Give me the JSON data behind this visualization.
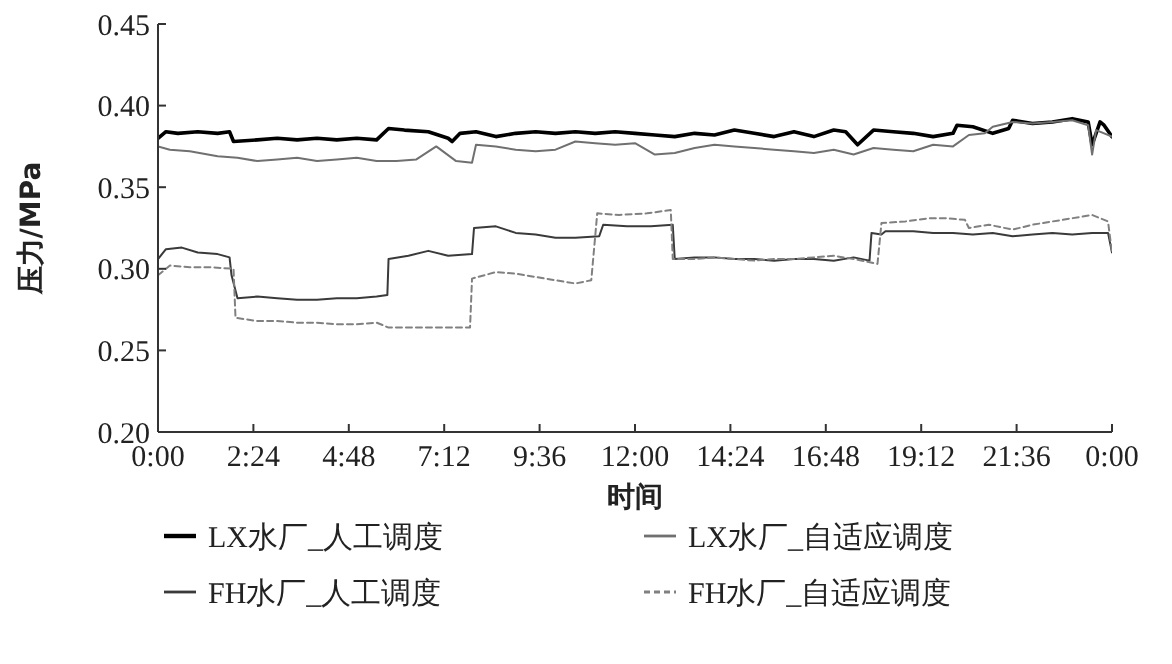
{
  "chart_data": {
    "type": "line",
    "xlabel": "时间",
    "ylabel": "压力/MPa",
    "xlim": [
      0,
      24
    ],
    "ylim": [
      0.2,
      0.45
    ],
    "xticks": [
      {
        "value": 0,
        "label": "0:00"
      },
      {
        "value": 2.4,
        "label": "2:24"
      },
      {
        "value": 4.8,
        "label": "4:48"
      },
      {
        "value": 7.2,
        "label": "7:12"
      },
      {
        "value": 9.6,
        "label": "9:36"
      },
      {
        "value": 12,
        "label": "12:00"
      },
      {
        "value": 14.4,
        "label": "14:24"
      },
      {
        "value": 16.8,
        "label": "16:48"
      },
      {
        "value": 19.2,
        "label": "19:12"
      },
      {
        "value": 21.6,
        "label": "21:36"
      },
      {
        "value": 24,
        "label": "0:00"
      }
    ],
    "yticks": [
      {
        "value": 0.2,
        "label": "0.20"
      },
      {
        "value": 0.25,
        "label": "0.25"
      },
      {
        "value": 0.3,
        "label": "0.30"
      },
      {
        "value": 0.35,
        "label": "0.35"
      },
      {
        "value": 0.4,
        "label": "0.40"
      },
      {
        "value": 0.45,
        "label": "0.45"
      }
    ],
    "grid": false,
    "legend": "bottom",
    "marker": "none",
    "series": [
      {
        "name": "LX水厂_人工调度",
        "color": "#000000",
        "line_style": "solid",
        "x": [
          0,
          0.2,
          0.5,
          1,
          1.5,
          1.8,
          1.9,
          2.5,
          3,
          3.5,
          4,
          4.5,
          5,
          5.5,
          5.8,
          6.2,
          6.8,
          7.3,
          7.4,
          7.6,
          8,
          8.5,
          9,
          9.5,
          10,
          10.5,
          11,
          11.5,
          12,
          12.5,
          13,
          13.5,
          14,
          14.5,
          15,
          15.5,
          16,
          16.5,
          17,
          17.3,
          17.6,
          18,
          18.5,
          19,
          19.5,
          20,
          20.1,
          20.5,
          21,
          21.4,
          21.5,
          22,
          22.5,
          23,
          23.4,
          23.5,
          23.7,
          23.8,
          24
        ],
        "values": [
          0.38,
          0.384,
          0.383,
          0.384,
          0.383,
          0.384,
          0.378,
          0.379,
          0.38,
          0.379,
          0.38,
          0.379,
          0.38,
          0.379,
          0.386,
          0.385,
          0.384,
          0.38,
          0.378,
          0.383,
          0.384,
          0.381,
          0.383,
          0.384,
          0.383,
          0.384,
          0.383,
          0.384,
          0.383,
          0.382,
          0.381,
          0.383,
          0.382,
          0.385,
          0.383,
          0.381,
          0.384,
          0.381,
          0.385,
          0.384,
          0.376,
          0.385,
          0.384,
          0.383,
          0.381,
          0.383,
          0.388,
          0.387,
          0.383,
          0.386,
          0.391,
          0.389,
          0.39,
          0.392,
          0.39,
          0.376,
          0.39,
          0.388,
          0.381
        ]
      },
      {
        "name": "LX水厂_自适应调度",
        "color": "#707070",
        "line_style": "solid",
        "x": [
          0,
          0.3,
          0.8,
          1.5,
          2,
          2.5,
          3,
          3.5,
          4,
          4.5,
          5,
          5.5,
          6,
          6.5,
          7,
          7.5,
          7.9,
          8,
          8.5,
          9,
          9.5,
          10,
          10.5,
          11,
          11.5,
          12,
          12.5,
          13,
          13.5,
          14,
          14.5,
          15,
          15.5,
          16,
          16.5,
          17,
          17.5,
          18,
          18.5,
          19,
          19.5,
          20,
          20.4,
          20.8,
          21,
          21.5,
          22,
          22.5,
          23,
          23.4,
          23.5,
          23.6,
          24
        ],
        "values": [
          0.375,
          0.373,
          0.372,
          0.369,
          0.368,
          0.366,
          0.367,
          0.368,
          0.366,
          0.367,
          0.368,
          0.366,
          0.366,
          0.367,
          0.375,
          0.366,
          0.365,
          0.376,
          0.375,
          0.373,
          0.372,
          0.373,
          0.378,
          0.377,
          0.376,
          0.377,
          0.37,
          0.371,
          0.374,
          0.376,
          0.375,
          0.374,
          0.373,
          0.372,
          0.371,
          0.373,
          0.37,
          0.374,
          0.373,
          0.372,
          0.376,
          0.375,
          0.382,
          0.383,
          0.387,
          0.39,
          0.389,
          0.39,
          0.391,
          0.388,
          0.37,
          0.385,
          0.381
        ]
      },
      {
        "name": "FH水厂_人工调度",
        "color": "#3a3a3a",
        "line_style": "solid",
        "x": [
          0,
          0.2,
          0.6,
          1,
          1.5,
          1.8,
          1.85,
          2,
          2.5,
          3,
          3.5,
          4,
          4.5,
          5,
          5.5,
          5.77,
          5.8,
          6.3,
          6.8,
          7.3,
          7.9,
          7.95,
          8.5,
          9,
          9.5,
          10,
          10.5,
          11.1,
          11.2,
          11.8,
          12.4,
          12.95,
          13,
          13.5,
          14,
          14.5,
          15,
          15.5,
          16,
          16.5,
          17,
          17.5,
          17.9,
          17.95,
          18.2,
          18.3,
          19,
          19.5,
          20,
          20.5,
          21,
          21.5,
          22,
          22.5,
          23,
          23.5,
          23.9,
          24
        ],
        "values": [
          0.306,
          0.312,
          0.313,
          0.31,
          0.309,
          0.307,
          0.296,
          0.282,
          0.283,
          0.282,
          0.281,
          0.281,
          0.282,
          0.282,
          0.283,
          0.284,
          0.306,
          0.308,
          0.311,
          0.308,
          0.309,
          0.325,
          0.326,
          0.322,
          0.321,
          0.319,
          0.319,
          0.32,
          0.327,
          0.326,
          0.326,
          0.327,
          0.306,
          0.307,
          0.307,
          0.306,
          0.306,
          0.305,
          0.306,
          0.306,
          0.305,
          0.307,
          0.305,
          0.322,
          0.321,
          0.323,
          0.323,
          0.322,
          0.322,
          0.321,
          0.322,
          0.32,
          0.321,
          0.322,
          0.321,
          0.322,
          0.322,
          0.31
        ]
      },
      {
        "name": "FH水厂_自适应调度",
        "color": "#808080",
        "line_style": "dashed",
        "x": [
          0,
          0.3,
          0.8,
          1.3,
          1.9,
          1.95,
          2.5,
          3,
          3.5,
          4,
          4.5,
          5,
          5.5,
          5.8,
          7.85,
          7.9,
          8.5,
          9,
          9.5,
          10,
          10.5,
          10.9,
          11.05,
          11.6,
          12.3,
          12.9,
          12.95,
          13.5,
          14,
          14.5,
          15,
          15.5,
          16,
          16.5,
          17,
          17.5,
          18.1,
          18.2,
          18.8,
          19.4,
          19.8,
          20.3,
          20.4,
          20.9,
          21.5,
          22,
          22.5,
          23,
          23.5,
          23.9,
          24
        ],
        "values": [
          0.296,
          0.302,
          0.301,
          0.301,
          0.3,
          0.27,
          0.268,
          0.268,
          0.267,
          0.267,
          0.266,
          0.266,
          0.267,
          0.264,
          0.264,
          0.294,
          0.298,
          0.297,
          0.295,
          0.293,
          0.291,
          0.293,
          0.334,
          0.333,
          0.334,
          0.336,
          0.306,
          0.306,
          0.307,
          0.306,
          0.305,
          0.306,
          0.306,
          0.307,
          0.308,
          0.306,
          0.303,
          0.328,
          0.329,
          0.331,
          0.331,
          0.33,
          0.325,
          0.327,
          0.324,
          0.327,
          0.329,
          0.331,
          0.333,
          0.329,
          0.31
        ]
      }
    ]
  }
}
